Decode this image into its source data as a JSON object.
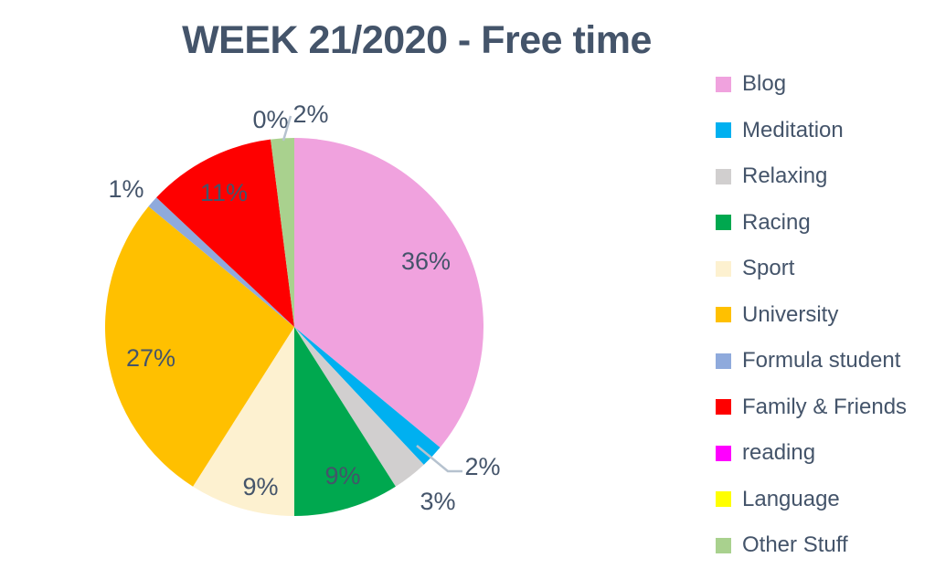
{
  "chart_data": {
    "type": "pie",
    "title": "WEEK 21/2020 - Free time",
    "unit": "percent",
    "start_angle_deg": 0,
    "direction": "clockwise",
    "legend_position": "right",
    "categories": [
      "Blog",
      "Meditation",
      "Relaxing",
      "Racing",
      "Sport",
      "University",
      "Formula student",
      "Family & Friends",
      "reading",
      "Language",
      "Other Stuff"
    ],
    "values": [
      36,
      2,
      3,
      9,
      9,
      27,
      1,
      11,
      0,
      0,
      2
    ],
    "labels": [
      "36%",
      "2%",
      "3%",
      "9%",
      "9%",
      "27%",
      "1%",
      "11%",
      "0%",
      "0%",
      "2%"
    ],
    "colors": [
      "#F0A2DE",
      "#00B0F0",
      "#D1CFCF",
      "#00A84F",
      "#FDF1D0",
      "#FFC000",
      "#8FAADC",
      "#FE0000",
      "#FF00FF",
      "#FFFF00",
      "#A9D18E"
    ]
  },
  "colors": {
    "title_text": "#44546A",
    "label_text": "#44546A",
    "legend_text": "#44546A",
    "leader_line": "#B6C2CF",
    "background": "#FFFFFF"
  }
}
